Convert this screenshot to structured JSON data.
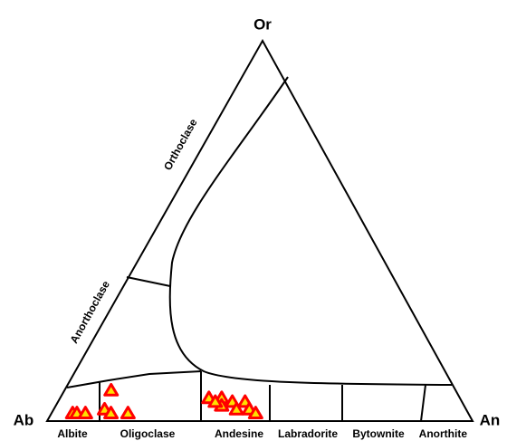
{
  "chart_data": {
    "type": "ternary",
    "corners": {
      "left": "Ab",
      "right": "An",
      "top": "Or"
    },
    "bottom_fields": [
      "Albite",
      "Oligoclase",
      "Andesine",
      "Labradorite",
      "Bytownite",
      "Anorthite"
    ],
    "edge_fields": [
      "Orthoclase",
      "Anorthoclase"
    ],
    "marker": {
      "fill": "#ffe000",
      "stroke": "#ff0000"
    },
    "points": {
      "Ab": [
        93,
        92,
        90,
        81,
        85,
        84,
        80,
        59,
        56,
        54,
        51,
        51,
        50,
        54,
        57,
        58
      ],
      "An": [
        5,
        6,
        8,
        11,
        12,
        14,
        18,
        35,
        38,
        41,
        44,
        46,
        48,
        43,
        39,
        37
      ],
      "Or": [
        2,
        2,
        2,
        8,
        3,
        2,
        2,
        6,
        6,
        5,
        5,
        3,
        2,
        3,
        4,
        5
      ]
    }
  }
}
